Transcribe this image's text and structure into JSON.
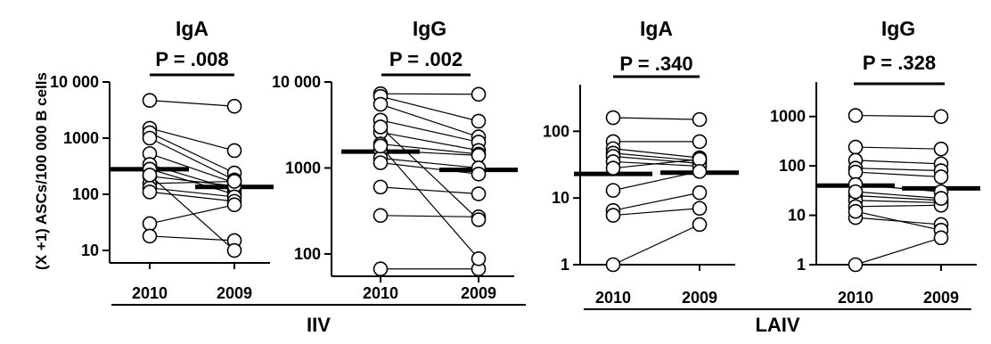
{
  "figure": {
    "ylabel": "(X +1) ASCs/100 000 B cells",
    "groups": [
      {
        "label": "IIV",
        "panels": [
          0,
          1
        ]
      },
      {
        "label": "LAIV",
        "panels": [
          2,
          3
        ]
      }
    ]
  },
  "chart_data": [
    {
      "type": "scatter",
      "title": "IgA",
      "pvalue": "P = .008",
      "categories": [
        "2010",
        "2009"
      ],
      "yscale": "log",
      "ylim": [
        6,
        10000
      ],
      "yticks": [
        10,
        100,
        1000,
        10000
      ],
      "ytick_labels": [
        "10",
        "100",
        "1000",
        "10 000"
      ],
      "medians": [
        280,
        135
      ],
      "pairs": [
        [
          4700,
          3700
        ],
        [
          1500,
          600
        ],
        [
          1250,
          240
        ],
        [
          1000,
          180
        ],
        [
          530,
          160
        ],
        [
          340,
          120
        ],
        [
          280,
          100
        ],
        [
          210,
          140
        ],
        [
          155,
          170
        ],
        [
          130,
          90
        ],
        [
          110,
          75
        ],
        [
          30,
          65
        ],
        [
          18,
          15
        ],
        [
          220,
          10
        ]
      ]
    },
    {
      "type": "scatter",
      "title": "IgG",
      "pvalue": "P = .002",
      "categories": [
        "2010",
        "2009"
      ],
      "yscale": "log",
      "ylim": [
        55,
        10000
      ],
      "yticks": [
        100,
        1000,
        10000
      ],
      "ytick_labels": [
        "100",
        "1000",
        "10 000"
      ],
      "medians": [
        1550,
        950
      ],
      "pairs": [
        [
          7300,
          7200
        ],
        [
          6800,
          3500
        ],
        [
          5500,
          2300
        ],
        [
          3600,
          2000
        ],
        [
          2600,
          1600
        ],
        [
          1900,
          1450
        ],
        [
          1600,
          1400
        ],
        [
          1300,
          1000
        ],
        [
          1150,
          850
        ],
        [
          600,
          500
        ],
        [
          280,
          270
        ],
        [
          67,
          67
        ],
        [
          1800,
          88
        ],
        [
          3000,
          250
        ]
      ]
    },
    {
      "type": "scatter",
      "title": "IgA",
      "pvalue": "P = .340",
      "categories": [
        "2010",
        "2009"
      ],
      "yscale": "log",
      "ylim": [
        1,
        500
      ],
      "yticks": [
        1,
        10,
        100
      ],
      "ytick_labels": [
        "1",
        "10",
        "100"
      ],
      "medians": [
        23,
        24
      ],
      "pairs": [
        [
          160,
          150
        ],
        [
          70,
          70
        ],
        [
          55,
          40
        ],
        [
          47,
          36
        ],
        [
          42,
          33
        ],
        [
          35,
          30
        ],
        [
          28,
          38
        ],
        [
          13,
          25
        ],
        [
          6.5,
          12
        ],
        [
          5.5,
          7
        ],
        [
          1,
          4
        ]
      ]
    },
    {
      "type": "scatter",
      "title": "IgG",
      "pvalue": "P = .328",
      "categories": [
        "2010",
        "2009"
      ],
      "yscale": "log",
      "ylim": [
        1,
        5000
      ],
      "yticks": [
        1,
        10,
        100,
        1000
      ],
      "ytick_labels": [
        "1",
        "10",
        "100",
        "1000"
      ],
      "medians": [
        40,
        35
      ],
      "pairs": [
        [
          1050,
          1000
        ],
        [
          240,
          220
        ],
        [
          130,
          110
        ],
        [
          90,
          80
        ],
        [
          75,
          60
        ],
        [
          42,
          30
        ],
        [
          25,
          20
        ],
        [
          20,
          18
        ],
        [
          15,
          16
        ],
        [
          9,
          6.5
        ],
        [
          12,
          5
        ],
        [
          1,
          3.5
        ],
        [
          30,
          22
        ]
      ]
    }
  ]
}
